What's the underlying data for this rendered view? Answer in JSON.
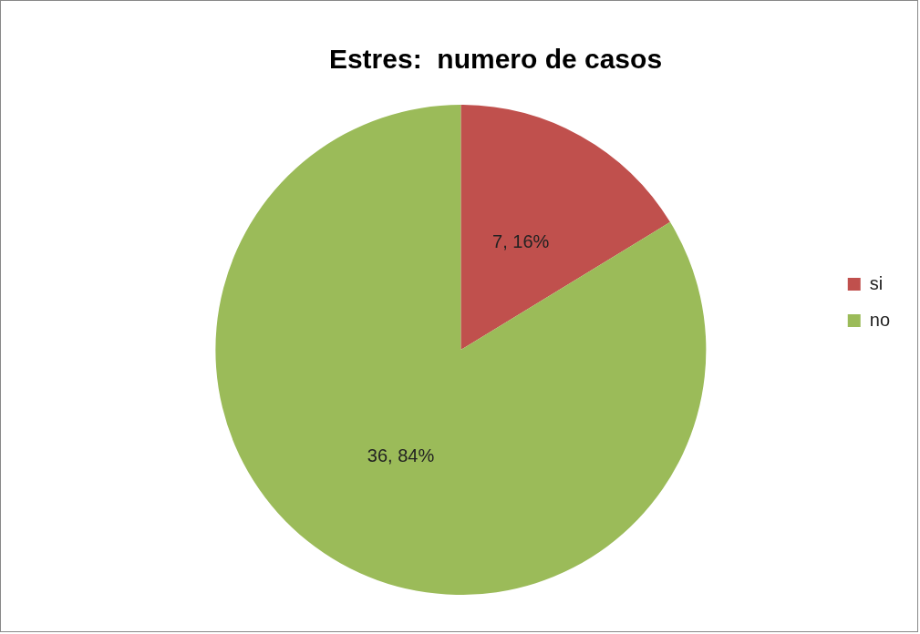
{
  "chart_data": {
    "type": "pie",
    "title": "Estres:  numero de casos",
    "categories": [
      "si",
      "no"
    ],
    "values": [
      7,
      36
    ],
    "colors": [
      "#c0504d",
      "#9bbb59"
    ],
    "value_labels": [
      "7, 16%",
      "36, 84%"
    ],
    "legend": "right"
  }
}
